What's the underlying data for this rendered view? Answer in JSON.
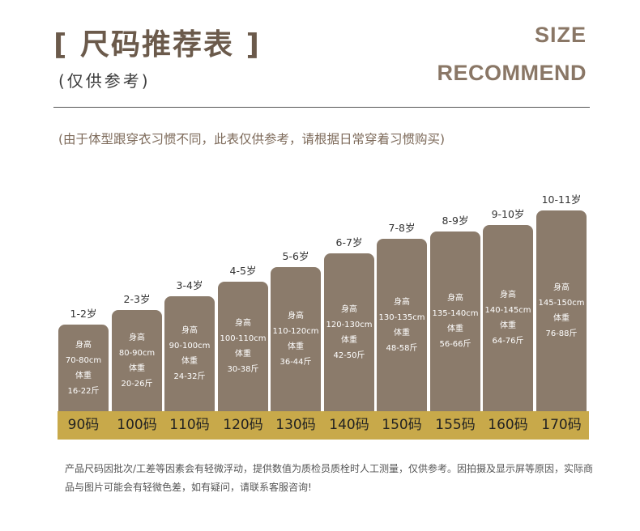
{
  "header": {
    "title_cn": "[ 尺码推荐表 ]",
    "subtitle_cn": "(仅供参考)",
    "title_en_1": "SIZE",
    "title_en_2": "RECOMMEND"
  },
  "note_top": "(由于体型跟穿衣习惯不同，此表仅供参考，请根据日常穿着习惯购买)",
  "colors": {
    "bar": "#8b7b6b",
    "strip": "#c8a94a",
    "title": "#6b5a4b"
  },
  "chart_data": {
    "type": "bar",
    "title": "尺码推荐表",
    "height_label": "身高",
    "weight_label": "体重",
    "categories": [
      "90码",
      "100码",
      "110码",
      "120码",
      "130码",
      "140码",
      "150码",
      "155码",
      "160码",
      "170码"
    ],
    "ages": [
      "1-2岁",
      "2-3岁",
      "3-4岁",
      "4-5岁",
      "5-6岁",
      "6-7岁",
      "7-8岁",
      "8-9岁",
      "9-10岁",
      "10-11岁"
    ],
    "heights": [
      "70-80cm",
      "80-90cm",
      "90-100cm",
      "100-110cm",
      "110-120cm",
      "120-130cm",
      "130-135cm",
      "135-140cm",
      "140-145cm",
      "145-150cm"
    ],
    "weights": [
      "16-22斤",
      "20-26斤",
      "24-32斤",
      "30-38斤",
      "36-44斤",
      "42-50斤",
      "48-58斤",
      "56-66斤",
      "64-76斤",
      "76-88斤"
    ],
    "values": [
      90,
      100,
      110,
      120,
      130,
      140,
      150,
      155,
      160,
      170
    ]
  },
  "note_bottom": "产品尺码因批次/工差等因素会有轻微浮动，提供数值为质检员质栓时人工测量，仅供参考。因拍摄及显示屏等原因，实际商品与图片可能会有轻微色差，如有疑问，请联系客服咨询!"
}
